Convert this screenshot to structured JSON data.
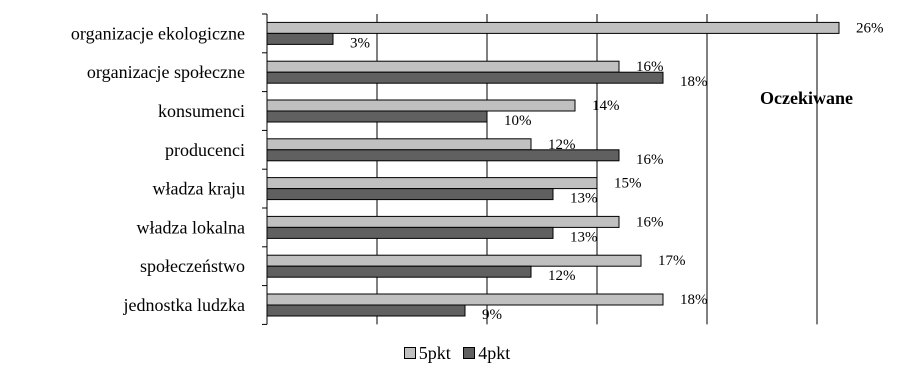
{
  "chart_data": {
    "type": "bar",
    "orientation": "horizontal",
    "title": "Oczekiwane",
    "categories": [
      "organizacje ekologiczne",
      "organizacje społeczne",
      "konsumenci",
      "producenci",
      "władza kraju",
      "władza lokalna",
      "społeczeństwo",
      "jednostka ludzka"
    ],
    "series": [
      {
        "name": "5pkt",
        "color": "#c0c0c0",
        "values": [
          26,
          16,
          14,
          12,
          15,
          16,
          17,
          18
        ],
        "labels": [
          "26%",
          "16%",
          "14%",
          "12%",
          "15%",
          "16%",
          "17%",
          "18%"
        ]
      },
      {
        "name": "4pkt",
        "color": "#606060",
        "values": [
          3,
          18,
          10,
          16,
          13,
          13,
          12,
          9
        ],
        "labels": [
          "3%",
          "18%",
          "10%",
          "16%",
          "13%",
          "13%",
          "12%",
          "9%"
        ]
      }
    ],
    "xlim": [
      0,
      28
    ],
    "grid": true,
    "legend_position": "bottom"
  }
}
